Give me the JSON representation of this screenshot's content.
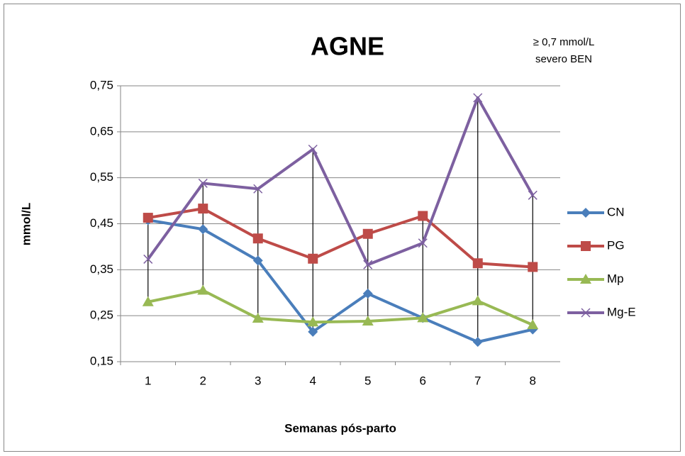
{
  "chart_data": {
    "type": "line",
    "title": "AGNE",
    "annotation": [
      "≥ 0,7 mmol/L",
      "severo BEN"
    ],
    "xlabel": "Semanas pós-parto",
    "ylabel": "mmol/L",
    "categories": [
      "1",
      "2",
      "3",
      "4",
      "5",
      "6",
      "7",
      "8"
    ],
    "series": [
      {
        "name": "CN",
        "color": "#4a7ebb",
        "marker": "diamond",
        "values": [
          0.458,
          0.438,
          0.37,
          0.215,
          0.298,
          0.245,
          0.193,
          0.22
        ]
      },
      {
        "name": "PG",
        "color": "#be4b48",
        "marker": "square",
        "values": [
          0.463,
          0.483,
          0.418,
          0.374,
          0.428,
          0.467,
          0.364,
          0.356
        ]
      },
      {
        "name": "Mp",
        "color": "#98b954",
        "marker": "triangle",
        "values": [
          0.28,
          0.305,
          0.244,
          0.236,
          0.238,
          0.245,
          0.282,
          0.23
        ]
      },
      {
        "name": "Mg-E",
        "color": "#7d60a0",
        "marker": "x",
        "values": [
          0.373,
          0.538,
          0.526,
          0.612,
          0.361,
          0.408,
          0.724,
          0.512
        ]
      }
    ],
    "ylim": [
      0.15,
      0.75
    ],
    "yticks": [
      {
        "value": 0.15,
        "label": "0,15"
      },
      {
        "value": 0.25,
        "label": "0,25"
      },
      {
        "value": 0.35,
        "label": "0,35"
      },
      {
        "value": 0.45,
        "label": "0,45"
      },
      {
        "value": 0.55,
        "label": "0,55"
      },
      {
        "value": 0.65,
        "label": "0,65"
      },
      {
        "value": 0.75,
        "label": "0,75"
      }
    ],
    "grid": true,
    "high_low_lines": true,
    "legend": "right"
  }
}
